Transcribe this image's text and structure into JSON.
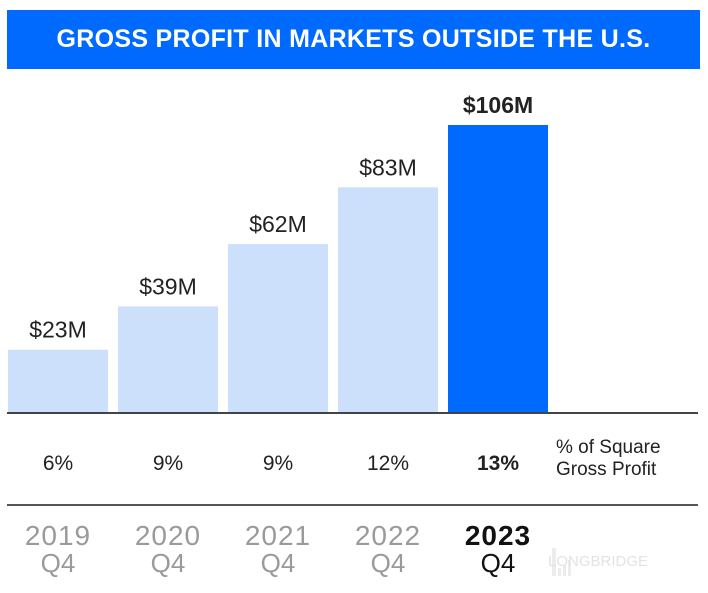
{
  "chart_data": {
    "type": "bar",
    "title": "GROSS PROFIT IN MARKETS OUTSIDE THE U.S.",
    "categories": [
      {
        "year": "2019",
        "quarter": "Q4"
      },
      {
        "year": "2020",
        "quarter": "Q4"
      },
      {
        "year": "2021",
        "quarter": "Q4"
      },
      {
        "year": "2022",
        "quarter": "Q4"
      },
      {
        "year": "2023",
        "quarter": "Q4"
      }
    ],
    "values": [
      23,
      39,
      62,
      83,
      106
    ],
    "value_labels": [
      "$23M",
      "$39M",
      "$62M",
      "$83M",
      "$106M"
    ],
    "unit": "$M",
    "percent_row_label": "% of Square Gross Profit",
    "percent_row_label_lines": [
      "% of Square",
      "Gross Profit"
    ],
    "percentages": [
      "6%",
      "9%",
      "9%",
      "12%",
      "13%"
    ],
    "highlight_index": 4,
    "colors": {
      "bar": "#cce0fb",
      "highlight": "#006aff",
      "title_bg": "#006aff"
    },
    "grid": false
  },
  "watermark": "LONGBRIDGE"
}
